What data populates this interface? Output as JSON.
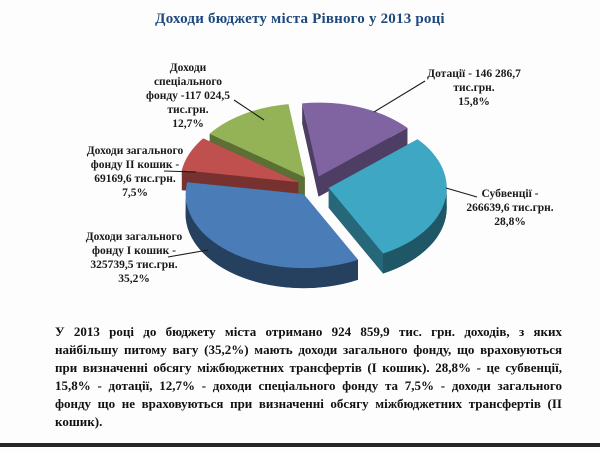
{
  "page": {
    "title": "Доходи бюджету міста Рівного у 2013 році",
    "title_color": "#1F497D",
    "summary_text": "У 2013 році до бюджету міста отримано 924 859,9 тис. грн. доходів, з яких найбільшу питому вагу (35,2%) мають доходи загального фонду, що враховуються при визначенні обсягу міжбюджетних трансфертів (І кошик). 28,8% - це субвенції, 15,8% - дотації, 12,7% - доходи спеціального фонду та 7,5% - доходи загального фонду що не враховуються при визначенні обсягу міжбюджетних трансфертів (ІІ кошик)."
  },
  "chart_data": {
    "type": "pie",
    "is_3d": true,
    "exploded": true,
    "title": "Доходи бюджету міста Рівного у 2013 році",
    "unit": "тис.грн.",
    "total_value_text": "924 859,9 тис. грн.",
    "start_angle_deg": -8,
    "legend_position": "callout-labels",
    "slices": [
      {
        "name": "Дотації",
        "value": 146286.7,
        "display_value": "146 286,7",
        "percent": 15.8,
        "color": "#8064A2",
        "label_lines": [
          "Дотації - 146 286,7",
          "тис.грн.",
          "15,8%"
        ]
      },
      {
        "name": "Субвенції",
        "value": 266639.6,
        "display_value": "266639,6",
        "percent": 28.8,
        "color": "#3EA8C4",
        "label_lines": [
          "Субвенції -",
          "266639,6 тис.грн.",
          "28,8%"
        ]
      },
      {
        "name": "Доходи загального фонду І кошик",
        "value": 325739.5,
        "display_value": "325739,5",
        "percent": 35.2,
        "color": "#4A7CB8",
        "label_lines": [
          "Доходи загального",
          "фонду І кошик -",
          "325739,5 тис.грн.",
          "35,2%"
        ]
      },
      {
        "name": "Доходи загального фонду ІІ кошик",
        "value": 69169.6,
        "display_value": "69169,6",
        "percent": 7.5,
        "color": "#C0504D",
        "label_lines": [
          "Доходи загального",
          "фонду ІІ кошик -",
          "69169,6 тис.грн.",
          "7,5%"
        ]
      },
      {
        "name": "Доходи спеціального фонду",
        "value": 117024.5,
        "display_value": "117 024,5",
        "percent": 12.7,
        "color": "#94B356",
        "label_lines": [
          "Доходи",
          "спеціального",
          "фонду -117 024,5",
          "тис.грн.",
          "12,7%"
        ]
      }
    ]
  }
}
